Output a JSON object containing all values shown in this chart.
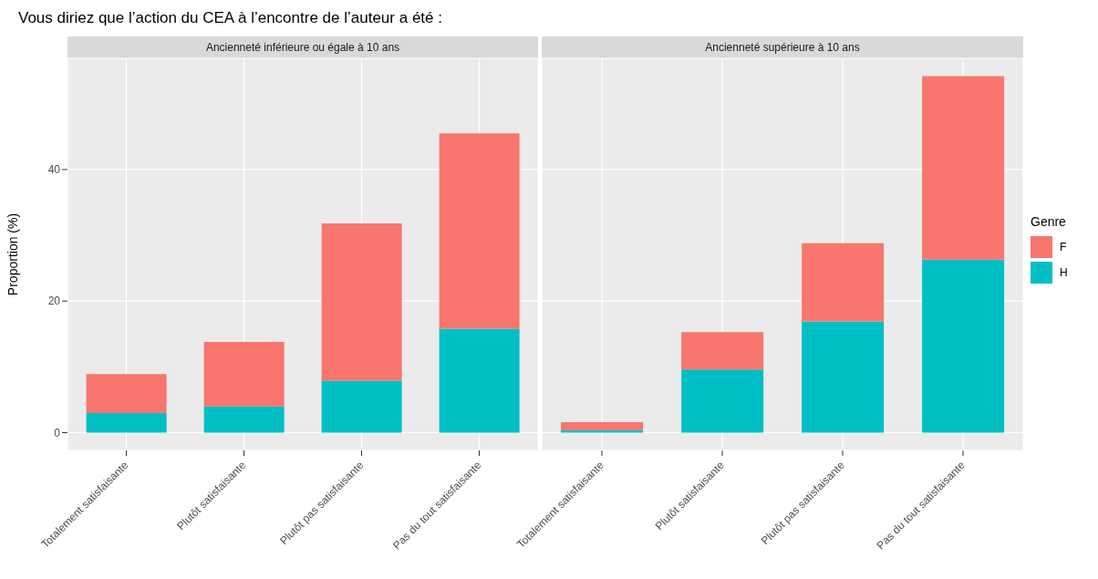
{
  "chart_data": [
    {
      "type": "bar",
      "title": "Vous diriez que l’action du CEA à l’encontre de l’auteur a été :",
      "subtitle": "Ancienneté inférieure ou égale à 10 ans",
      "ylabel": "Proportion (%)",
      "categories": [
        "Totalement satisfaisante",
        "Plutôt satisfaisante",
        "Plutôt pas satisfaisante",
        "Pas du tout satisfaisante"
      ],
      "stacked": true,
      "ylim": [
        -2.7,
        56.9
      ],
      "yticks": [
        0,
        20,
        40
      ],
      "grid": true,
      "series": [
        {
          "color": "#00bfc4",
          "values": [
            3.0,
            4.0,
            7.9,
            15.8
          ]
        },
        {
          "color": "#f8766d",
          "values": [
            5.9,
            9.8,
            23.9,
            29.7
          ]
        }
      ]
    },
    {
      "type": "bar",
      "subtitle": "Ancienneté supérieure à 10 ans",
      "legend_title": "Genre",
      "legend": "right",
      "tick_labels": "x",
      "categories": [
        "Totalement satisfaisante",
        "Plutôt satisfaisante",
        "Plutôt pas satisfaisante",
        "Pas du tout satisfaisante"
      ],
      "stacked": true,
      "ylim": [
        -2.7,
        56.9
      ],
      "yticks": [
        0,
        20,
        40
      ],
      "grid": true,
      "series": [
        {
          "name": "H",
          "color": "#00bfc4",
          "values": [
            0.4,
            9.6,
            16.9,
            26.3
          ]
        },
        {
          "name": "F",
          "color": "#f8766d",
          "values": [
            1.2,
            5.7,
            11.9,
            27.9
          ]
        }
      ]
    }
  ]
}
